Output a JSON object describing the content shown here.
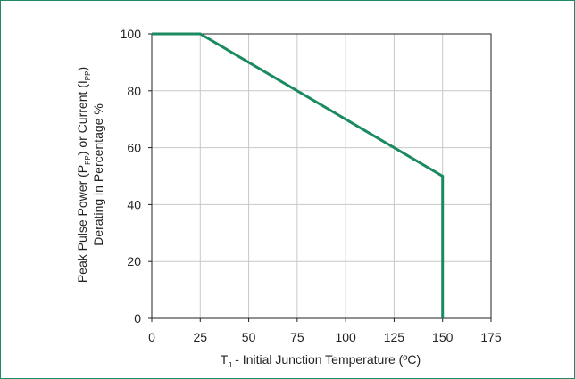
{
  "chart_data": {
    "type": "line",
    "x": [
      0,
      25,
      150,
      150
    ],
    "series": [
      {
        "values": [
          100,
          100,
          50,
          0
        ]
      }
    ],
    "xlim": [
      0,
      175
    ],
    "ylim": [
      0,
      100
    ],
    "xticks": [
      "0",
      "25",
      "50",
      "75",
      "100",
      "125",
      "150",
      "175"
    ],
    "yticks": [
      "0",
      "20",
      "40",
      "60",
      "80",
      "100"
    ],
    "xlabel": {
      "prefix": "T",
      "sub": "J",
      "rest": " - Initial Junction Temperature (ºC)"
    },
    "ylabel": {
      "line1_a": "Peak Pulse Power (P",
      "line1_sub1": "PP",
      "line1_b": ") or Current (I",
      "line1_sub2": "PP",
      "line1_c": ")",
      "line2": "Derating in Percentage %"
    },
    "grid": true,
    "colors": {
      "line": "#1a8a5f",
      "grid": "#c8c8c8",
      "frame": "#1f8a63"
    }
  }
}
